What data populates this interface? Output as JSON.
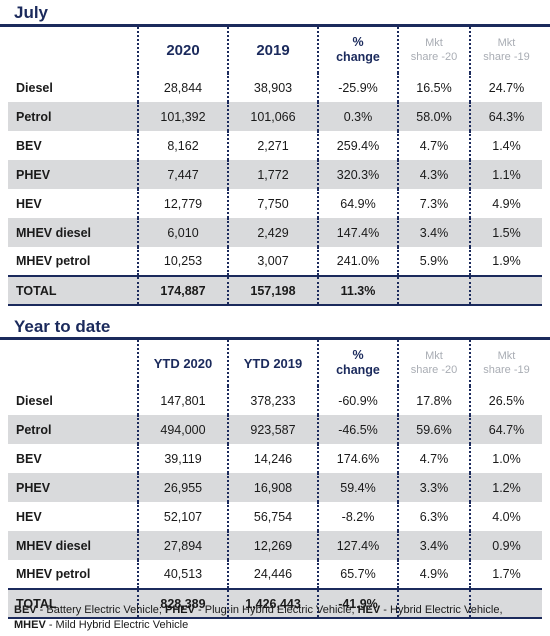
{
  "july": {
    "title": "July",
    "headers": {
      "col1": "2020",
      "col2": "2019",
      "change_line1": "%",
      "change_line2": "change",
      "mkt20_line1": "Mkt",
      "mkt20_line2": "share -20",
      "mkt19_line1": "Mkt",
      "mkt19_line2": "share -19"
    },
    "rows": [
      {
        "label": "Diesel",
        "v1": "28,844",
        "v2": "38,903",
        "chg": "-25.9%",
        "m20": "16.5%",
        "m19": "24.7%"
      },
      {
        "label": "Petrol",
        "v1": "101,392",
        "v2": "101,066",
        "chg": "0.3%",
        "m20": "58.0%",
        "m19": "64.3%"
      },
      {
        "label": "BEV",
        "v1": "8,162",
        "v2": "2,271",
        "chg": "259.4%",
        "m20": "4.7%",
        "m19": "1.4%"
      },
      {
        "label": "PHEV",
        "v1": "7,447",
        "v2": "1,772",
        "chg": "320.3%",
        "m20": "4.3%",
        "m19": "1.1%"
      },
      {
        "label": "HEV",
        "v1": "12,779",
        "v2": "7,750",
        "chg": "64.9%",
        "m20": "7.3%",
        "m19": "4.9%"
      },
      {
        "label": "MHEV diesel",
        "v1": "6,010",
        "v2": "2,429",
        "chg": "147.4%",
        "m20": "3.4%",
        "m19": "1.5%"
      },
      {
        "label": "MHEV petrol",
        "v1": "10,253",
        "v2": "3,007",
        "chg": "241.0%",
        "m20": "5.9%",
        "m19": "1.9%"
      }
    ],
    "total": {
      "label": "TOTAL",
      "v1": "174,887",
      "v2": "157,198",
      "chg": "11.3%"
    }
  },
  "ytd": {
    "title": "Year to date",
    "headers": {
      "col1": "YTD 2020",
      "col2": "YTD 2019",
      "change_line1": "%",
      "change_line2": "change",
      "mkt20_line1": "Mkt",
      "mkt20_line2": "share -20",
      "mkt19_line1": "Mkt",
      "mkt19_line2": "share -19"
    },
    "rows": [
      {
        "label": "Diesel",
        "v1": "147,801",
        "v2": "378,233",
        "chg": "-60.9%",
        "m20": "17.8%",
        "m19": "26.5%"
      },
      {
        "label": "Petrol",
        "v1": "494,000",
        "v2": "923,587",
        "chg": "-46.5%",
        "m20": "59.6%",
        "m19": "64.7%"
      },
      {
        "label": "BEV",
        "v1": "39,119",
        "v2": "14,246",
        "chg": "174.6%",
        "m20": "4.7%",
        "m19": "1.0%"
      },
      {
        "label": "PHEV",
        "v1": "26,955",
        "v2": "16,908",
        "chg": "59.4%",
        "m20": "3.3%",
        "m19": "1.2%"
      },
      {
        "label": "HEV",
        "v1": "52,107",
        "v2": "56,754",
        "chg": "-8.2%",
        "m20": "6.3%",
        "m19": "4.0%"
      },
      {
        "label": "MHEV diesel",
        "v1": "27,894",
        "v2": "12,269",
        "chg": "127.4%",
        "m20": "3.4%",
        "m19": "0.9%"
      },
      {
        "label": "MHEV petrol",
        "v1": "40,513",
        "v2": "24,446",
        "chg": "65.7%",
        "m20": "4.9%",
        "m19": "1.7%"
      }
    ],
    "total": {
      "label": "TOTAL",
      "v1": "828,389",
      "v2": "1,426,443",
      "chg": "-41.9%"
    }
  },
  "footnote": {
    "bev_abbr": "BEV",
    "bev_text": " - Battery Electric Vehicle; ",
    "phev_abbr": "PHEV",
    "phev_text": " - Plug-in Hybrid Electric Vehicle; ",
    "hev_abbr": "HEV",
    "hev_text": " - Hybrid Electric Vehicle,",
    "mhev_abbr": "MHEV",
    "mhev_text": " - Mild Hybrid Electric Vehicle"
  },
  "colors": {
    "navy": "#1b2a5c",
    "row_shade": "#d9dadc",
    "muted_header": "#a9adb4"
  }
}
